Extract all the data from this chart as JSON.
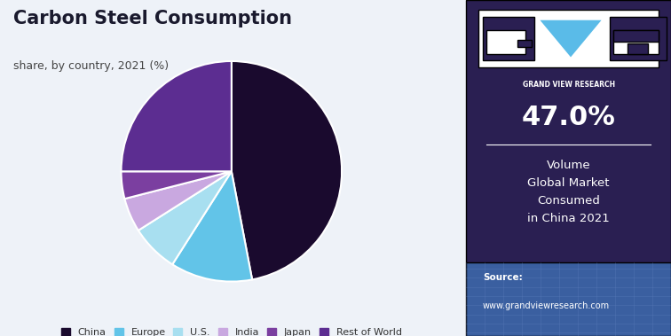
{
  "title": "Carbon Steel Consumption",
  "subtitle": "share, by country, 2021 (%)",
  "labels": [
    "China",
    "Europe",
    "U.S.",
    "India",
    "Japan",
    "Rest of World"
  ],
  "values": [
    47.0,
    12.0,
    7.0,
    5.0,
    4.0,
    25.0
  ],
  "colors": [
    "#1a0a2e",
    "#62c4e8",
    "#a8dff0",
    "#c9a8e0",
    "#7b3fa0",
    "#5c2d91"
  ],
  "wedge_edge_color": "#ffffff",
  "bg_color": "#eef2f8",
  "right_panel_color": "#2a1f52",
  "stat_value": "47.0%",
  "stat_label": "Volume\nGlobal Market\nConsumed\nin China 2021",
  "source_label": "Source:",
  "source_url": "www.grandviewresearch.com"
}
